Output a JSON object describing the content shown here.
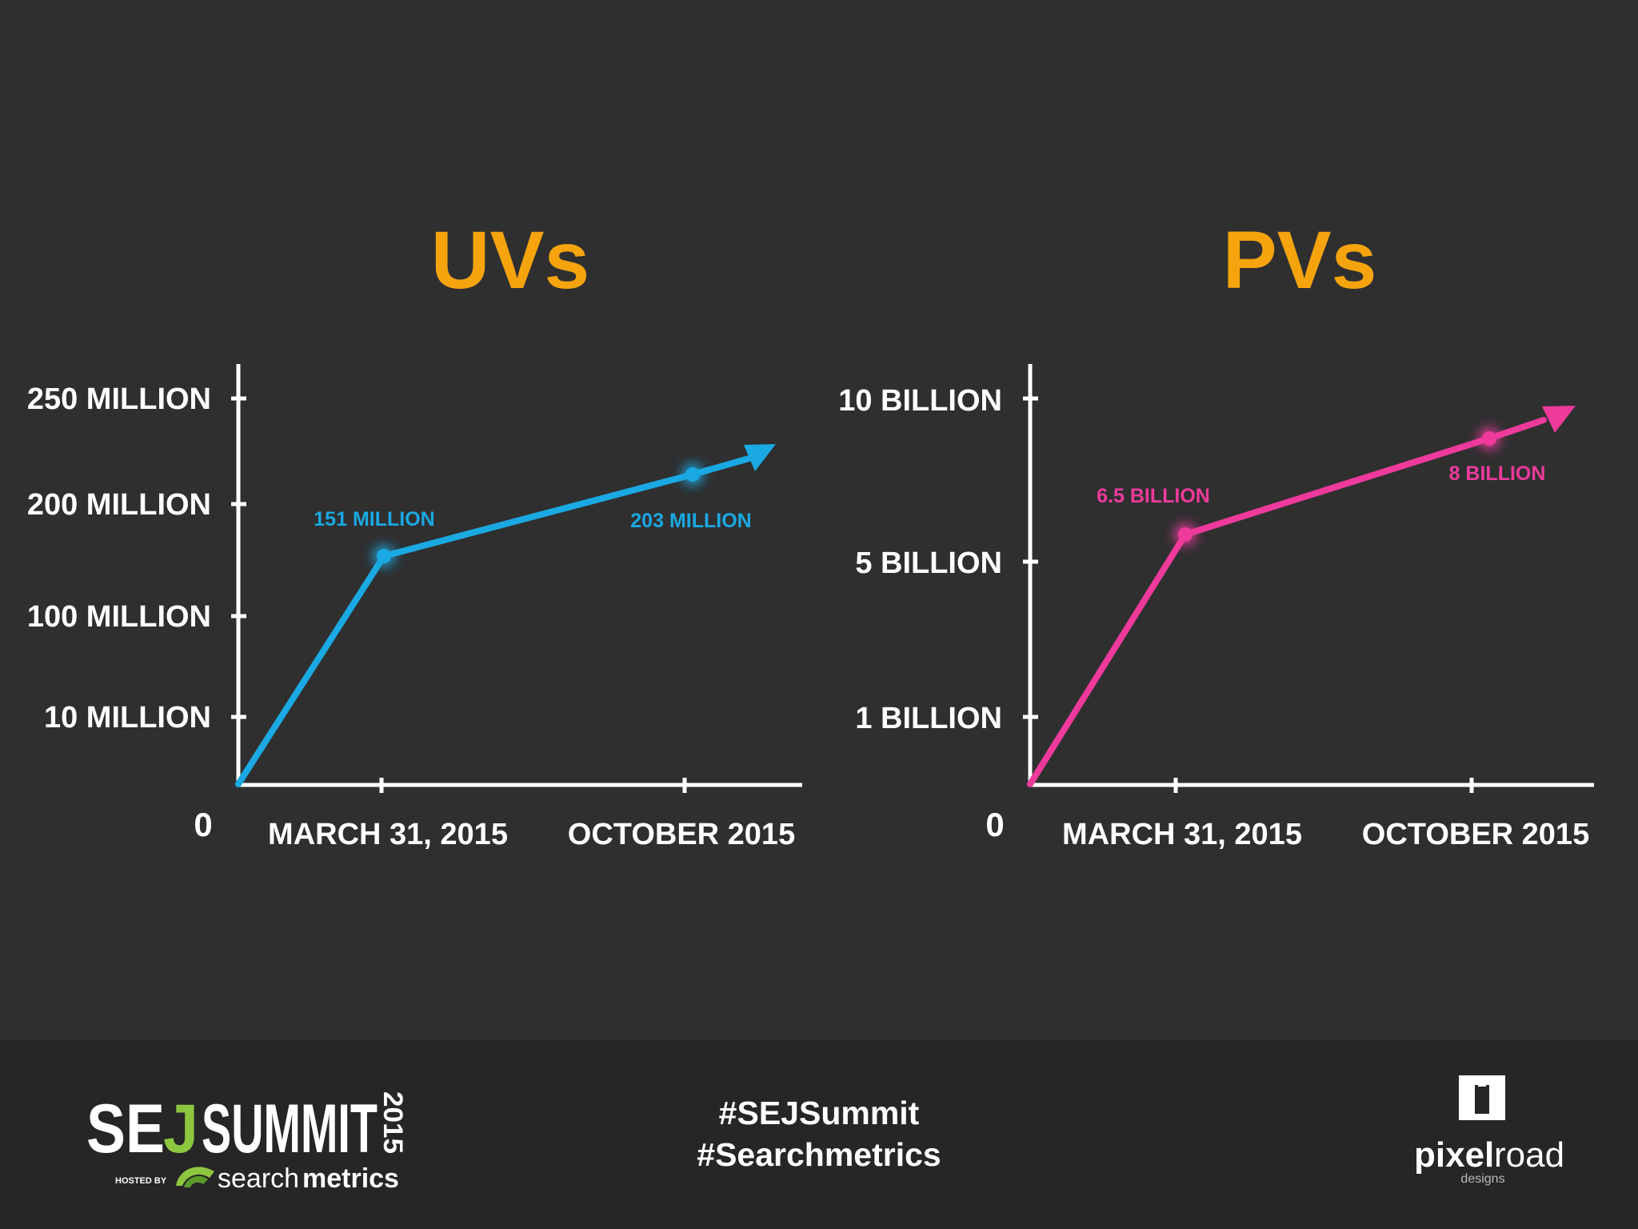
{
  "colors": {
    "background": "#2f2f30",
    "footer": "#262627",
    "title": "#f5a40e",
    "uv_series": "#1aa9e2",
    "pv_series": "#ee3a9b",
    "axis": "#ffffff"
  },
  "chart_data": [
    {
      "type": "line",
      "title": "UVs",
      "categories": [
        "0",
        "MARCH 31, 2015",
        "OCTOBER 2015"
      ],
      "y_tick_labels": [
        "0",
        "10 MILLION",
        "100 MILLION",
        "200 MILLION",
        "250 MILLION"
      ],
      "series": [
        {
          "values": [
            0,
            151,
            203
          ],
          "data_labels": [
            "",
            "151 MILLION",
            "203 MILLION"
          ],
          "arrow": true
        }
      ],
      "y_unit": "million",
      "scale": "non-linear (ticks unevenly spaced)",
      "grid": false,
      "legend": "none"
    },
    {
      "type": "line",
      "title": "PVs",
      "categories": [
        "0",
        "MARCH 31, 2015",
        "OCTOBER 2015"
      ],
      "y_tick_labels": [
        "0",
        "1 BILLION",
        "5 BILLION",
        "10 BILLION"
      ],
      "series": [
        {
          "values": [
            0,
            6.5,
            8
          ],
          "data_labels": [
            "",
            "6.5 BILLION",
            "8 BILLION"
          ],
          "arrow": true
        }
      ],
      "y_unit": "billion",
      "scale": "non-linear (ticks unevenly spaced)",
      "grid": false,
      "legend": "none"
    }
  ],
  "footer": {
    "hashtags": [
      "#SEJSummit",
      "#Searchmetrics"
    ],
    "sej_logo": {
      "text_sej": "SE",
      "text_j": "J",
      "text_summit": "SUMMIT",
      "text_year": "2015",
      "text_hosted": "HOSTED BY",
      "text_search": "search",
      "text_metrics": "metrics"
    },
    "pixelroad_logo": {
      "text_pixel": "pixel",
      "text_road": "road",
      "text_designs": "designs"
    }
  }
}
